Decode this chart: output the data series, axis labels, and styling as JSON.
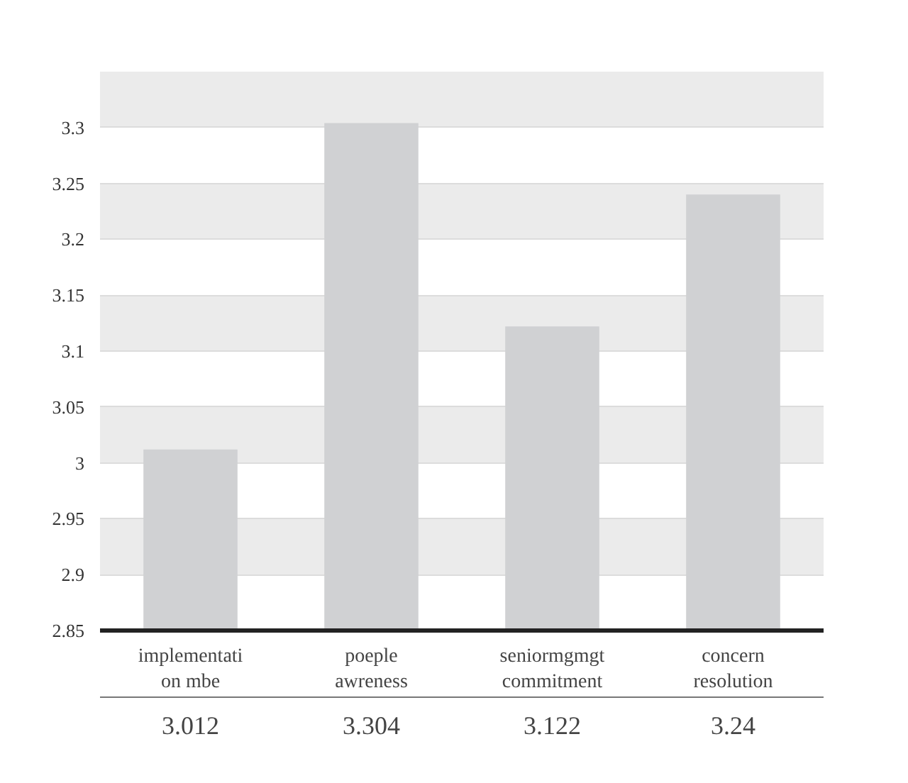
{
  "chart_data": {
    "type": "bar",
    "categories": [
      "implementation mbe",
      "poeple awreness",
      "seniormgmgt commitment",
      "concern resolution"
    ],
    "values": [
      3.012,
      3.304,
      3.122,
      3.24
    ],
    "color": "#d0d1d3",
    "ylim": [
      2.85,
      3.35
    ],
    "yticks": [
      2.85,
      2.9,
      2.95,
      3,
      3.05,
      3.1,
      3.15,
      3.2,
      3.25,
      3.3
    ],
    "grid": "y",
    "data_labels": true
  }
}
